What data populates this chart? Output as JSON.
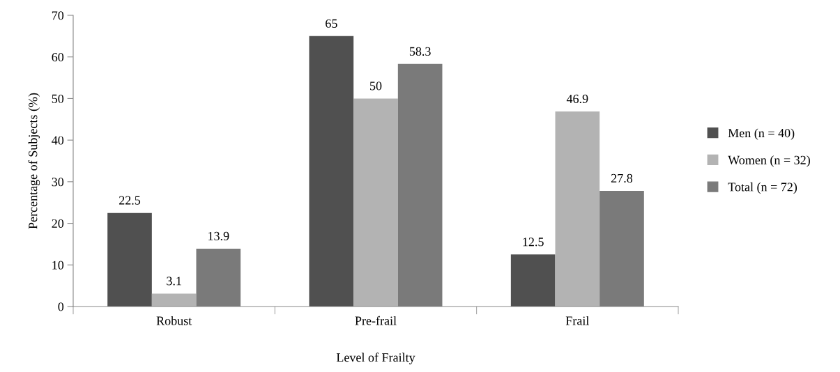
{
  "chart_data": {
    "type": "bar",
    "xlabel": "Level of Frailty",
    "ylabel": "Percentage of Subjects (%)",
    "categories": [
      "Robust",
      "Pre-frail",
      "Frail"
    ],
    "series": [
      {
        "name": "Men (n = 40)",
        "color": "#505050",
        "values": [
          22.5,
          65,
          12.5
        ]
      },
      {
        "name": "Women (n = 32)",
        "color": "#b3b3b3",
        "values": [
          3.1,
          50,
          46.9
        ]
      },
      {
        "name": "Total (n = 72)",
        "color": "#7a7a7a",
        "values": [
          13.9,
          58.3,
          27.8
        ]
      }
    ],
    "ylim": [
      0,
      70
    ],
    "yticks": [
      0,
      10,
      20,
      30,
      40,
      50,
      60,
      70
    ],
    "data_labels": true,
    "grid": false,
    "legend": "right"
  }
}
